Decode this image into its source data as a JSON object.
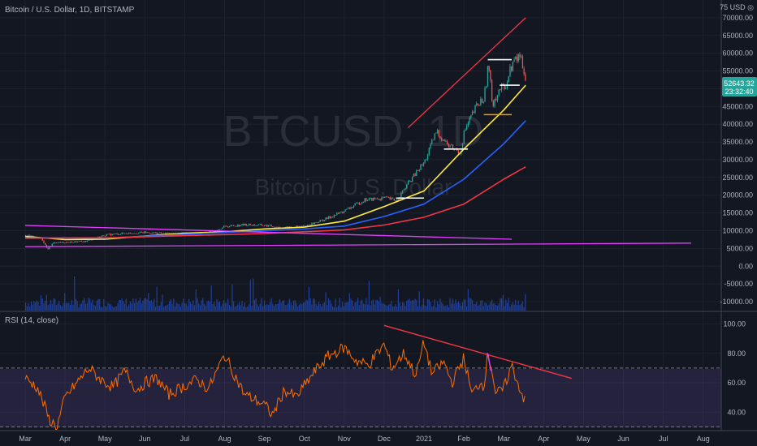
{
  "price_pane": {
    "title": "Bitcoin / U.S. Dollar, 1D, BITSTAMP",
    "watermark_symbol": "BTCUSD, 1D",
    "watermark_name": "Bitcoin / U.S. Dollar",
    "unit_label": "75 USD ◎",
    "last_price": "52643.32",
    "countdown": "23:32:40",
    "price_tag_color": "#26a69a"
  },
  "rsi_pane": {
    "title": "RSI (14, close)"
  },
  "x_axis": {
    "labels": [
      "Mar",
      "Apr",
      "May",
      "Jun",
      "Jul",
      "Aug",
      "Sep",
      "Oct",
      "Nov",
      "Dec",
      "2021",
      "Feb",
      "Mar",
      "Apr",
      "May",
      "Jun",
      "Jul",
      "Aug"
    ]
  },
  "chart_data": [
    {
      "type": "candlestick",
      "title": "Bitcoin / U.S. Dollar, 1D, BITSTAMP",
      "y_ticks": [
        "70000.00",
        "65000.00",
        "60000.00",
        "55000.00",
        "50000.00",
        "45000.00",
        "40000.00",
        "35000.00",
        "30000.00",
        "25000.00",
        "20000.00",
        "15000.00",
        "10000.00",
        "5000.00",
        "0.00",
        "-5000.00",
        "-10000.00"
      ],
      "y_tick_values": [
        70000,
        65000,
        60000,
        55000,
        50000,
        45000,
        40000,
        35000,
        30000,
        25000,
        20000,
        15000,
        10000,
        5000,
        0,
        -5000,
        -10000
      ],
      "ylim": [
        -12500,
        75000
      ],
      "x_labels": [
        "Mar",
        "Apr",
        "May",
        "Jun",
        "Jul",
        "Aug",
        "Sep",
        "Oct",
        "Nov",
        "Dec",
        "2021",
        "Feb",
        "Mar",
        "Apr",
        "May",
        "Jun",
        "Jul",
        "Aug"
      ],
      "price_path": {
        "months": [
          0,
          0.4,
          0.55,
          0.7,
          1,
          1.5,
          2,
          2.5,
          3,
          3.5,
          4,
          4.5,
          5,
          5.5,
          6,
          6.5,
          7,
          7.5,
          8,
          8.5,
          9,
          9.3,
          9.6,
          10,
          10.3,
          10.6,
          10.9,
          11,
          11.3,
          11.5,
          11.6,
          11.7,
          11.9,
          12,
          12.2,
          12.4,
          12.55
        ],
        "values": [
          8700,
          7800,
          4800,
          6600,
          6700,
          7000,
          8800,
          9300,
          9500,
          9200,
          9300,
          9200,
          11200,
          11700,
          11500,
          10800,
          11300,
          13200,
          15600,
          18700,
          19200,
          18500,
          23500,
          29300,
          38000,
          34000,
          32000,
          38000,
          45000,
          47500,
          57000,
          46000,
          50000,
          50000,
          57000,
          59500,
          52643
        ]
      },
      "moving_averages": [
        {
          "color": "#ffeb3b",
          "months": [
            0,
            1,
            2,
            3,
            4,
            5,
            6,
            7,
            8,
            9,
            10,
            11,
            12,
            12.55
          ],
          "values": [
            8400,
            7500,
            7600,
            8500,
            9300,
            9700,
            10500,
            11000,
            12700,
            16800,
            21200,
            33000,
            44000,
            51000
          ]
        },
        {
          "color": "#2962ff",
          "months": [
            0,
            2,
            4,
            6,
            7,
            8,
            9,
            10,
            11,
            12,
            12.55
          ],
          "values": [
            8000,
            7900,
            9000,
            10000,
            10500,
            11300,
            14000,
            17500,
            24500,
            34500,
            41000
          ]
        },
        {
          "color": "#f23645",
          "months": [
            0,
            2,
            4,
            6,
            8,
            9,
            10,
            11,
            12,
            12.55
          ],
          "values": [
            7900,
            8000,
            8600,
            9200,
            10200,
            11600,
            13800,
            17500,
            24500,
            28000
          ]
        }
      ],
      "trendlines": [
        {
          "color": "#f23645",
          "from": [
            9.6,
            39000
          ],
          "to": [
            12.55,
            70000
          ]
        },
        {
          "color": "#e040fb",
          "from": [
            0,
            11500
          ],
          "to": [
            12.2,
            7600
          ]
        },
        {
          "color": "#e040fb",
          "from": [
            0,
            5500
          ],
          "to": [
            16.7,
            6500
          ]
        }
      ],
      "levels": [
        {
          "color": "#ffffff",
          "from": 11.6,
          "to": 12.2,
          "value": 58200
        },
        {
          "color": "#ffffff",
          "from": 11.9,
          "to": 12.4,
          "value": 51000
        },
        {
          "color": "#ffffff",
          "from": 10.5,
          "to": 11.1,
          "value": 33000
        },
        {
          "color": "#ffffff",
          "from": 9.3,
          "to": 10.0,
          "value": 19200
        },
        {
          "color": "#ff9800",
          "from": 11.5,
          "to": 12.2,
          "value": 42700
        }
      ],
      "volume_color": "#2962ff"
    },
    {
      "type": "line",
      "title": "RSI (14, close)",
      "y_ticks": [
        "100.00",
        "80.00",
        "60.00",
        "40.00"
      ],
      "y_tick_values": [
        100,
        80,
        60,
        40
      ],
      "ylim": [
        28,
        108
      ],
      "band": [
        30,
        70
      ],
      "series": [
        {
          "color": "#ff6d00",
          "months": [
            0,
            0.3,
            0.5,
            0.6,
            0.8,
            1,
            1.3,
            1.6,
            1.9,
            2.2,
            2.5,
            2.8,
            3,
            3.3,
            3.6,
            4,
            4.3,
            4.6,
            5,
            5.2,
            5.5,
            5.8,
            6,
            6.2,
            6.5,
            6.8,
            7,
            7.3,
            7.6,
            8,
            8.3,
            8.6,
            9,
            9.2,
            9.5,
            9.8,
            10,
            10.2,
            10.5,
            10.7,
            11,
            11.2,
            11.4,
            11.5,
            11.6,
            11.7,
            11.8,
            12,
            12.2,
            12.35,
            12.55
          ],
          "values": [
            63,
            57,
            43,
            35,
            30,
            50,
            60,
            70,
            62,
            57,
            68,
            55,
            60,
            63,
            52,
            58,
            62,
            56,
            79,
            68,
            52,
            48,
            45,
            38,
            55,
            50,
            58,
            69,
            78,
            84,
            75,
            72,
            86,
            70,
            80,
            65,
            88,
            66,
            74,
            60,
            77,
            52,
            60,
            58,
            80,
            70,
            52,
            56,
            72,
            60,
            46
          ]
        }
      ],
      "trendlines": [
        {
          "color": "#f23645",
          "from": [
            9.0,
            99
          ],
          "to": [
            13.7,
            63
          ]
        },
        {
          "color": "#e040fb",
          "from": [
            11.6,
            80
          ],
          "to": [
            11.68,
            68
          ]
        }
      ]
    }
  ]
}
